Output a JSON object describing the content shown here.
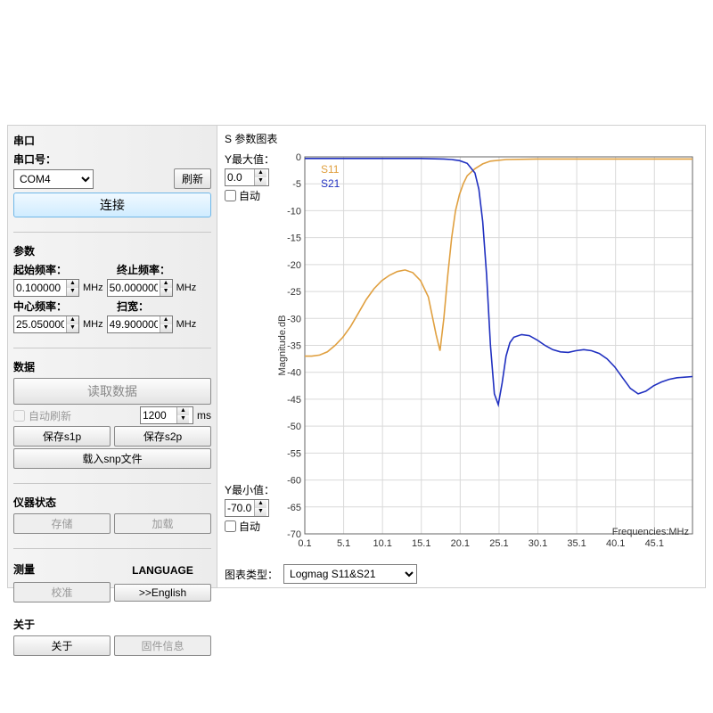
{
  "serial": {
    "section_label": "串口",
    "port_label": "串口号：",
    "port_value": "COM4",
    "refresh_label": "刷新",
    "connect_label": "连接"
  },
  "params": {
    "section_label": "参数",
    "start_freq_label": "起始频率：",
    "start_freq_value": "0.100000",
    "end_freq_label": "终止频率：",
    "end_freq_value": "50.000000",
    "center_freq_label": "中心频率：",
    "center_freq_value": "25.050000",
    "span_label": "扫宽：",
    "span_value": "49.900000",
    "unit": "MHz"
  },
  "data_sec": {
    "section_label": "数据",
    "read_label": "读取数据",
    "auto_refresh_label": "自动刷新",
    "interval_value": "1200",
    "interval_unit": "ms",
    "save_s1p_label": "保存s1p",
    "save_s2p_label": "保存s2p",
    "load_snp_label": "载入snp文件"
  },
  "instrument": {
    "section_label": "仪器状态",
    "store_label": "存储",
    "load_label": "加载"
  },
  "measure": {
    "section_label": "测量",
    "cal_label": "校准",
    "lang_title": "LANGUAGE",
    "lang_btn": ">>English"
  },
  "about": {
    "section_label": "关于",
    "about_btn": "关于",
    "fw_btn": "固件信息"
  },
  "chart": {
    "title": "S 参数图表",
    "ymax_label": "Y最大值：",
    "ymax_value": "0.0",
    "ymin_label": "Y最小值：",
    "ymin_value": "-70.0",
    "auto_label": "自动",
    "y_axis_title": "Magnitude.dB",
    "x_axis_title": "Frequencies:MHz",
    "type_label": "图表类型：",
    "type_value": "Logmag S11&S21",
    "legend_s11": "S11",
    "legend_s21": "S21",
    "xlim": [
      0.1,
      50.0
    ],
    "ylim": [
      -70,
      0
    ],
    "x_ticks": [
      0.1,
      5.1,
      10.1,
      15.1,
      20.1,
      25.1,
      30.1,
      35.1,
      40.1,
      45.1
    ],
    "y_ticks": [
      0,
      -5,
      -10,
      -15,
      -20,
      -25,
      -30,
      -35,
      -40,
      -45,
      -50,
      -55,
      -60,
      -65,
      -70
    ],
    "grid_color": "#d9d9d9",
    "border_color": "#666666",
    "background_color": "#ffffff",
    "s11_color": "#e0a040",
    "s21_color": "#2030c0",
    "line_width": 1.6,
    "s11_points": [
      [
        0.1,
        -37
      ],
      [
        1,
        -37
      ],
      [
        2,
        -36.8
      ],
      [
        3,
        -36.2
      ],
      [
        4,
        -35
      ],
      [
        5,
        -33.5
      ],
      [
        6,
        -31.5
      ],
      [
        7,
        -29
      ],
      [
        8,
        -26.5
      ],
      [
        9,
        -24.5
      ],
      [
        10,
        -23
      ],
      [
        11,
        -22
      ],
      [
        12,
        -21.3
      ],
      [
        13,
        -21
      ],
      [
        14,
        -21.5
      ],
      [
        15,
        -23
      ],
      [
        16,
        -26
      ],
      [
        17,
        -33
      ],
      [
        17.5,
        -36
      ],
      [
        18,
        -30
      ],
      [
        18.5,
        -22
      ],
      [
        19,
        -15
      ],
      [
        19.5,
        -10
      ],
      [
        20,
        -7
      ],
      [
        20.5,
        -5
      ],
      [
        21,
        -3.5
      ],
      [
        22,
        -2.2
      ],
      [
        23,
        -1.3
      ],
      [
        24,
        -0.8
      ],
      [
        26,
        -0.5
      ],
      [
        30,
        -0.4
      ],
      [
        35,
        -0.4
      ],
      [
        40,
        -0.4
      ],
      [
        45,
        -0.4
      ],
      [
        50,
        -0.4
      ]
    ],
    "s21_points": [
      [
        0.1,
        -0.3
      ],
      [
        5,
        -0.3
      ],
      [
        10,
        -0.3
      ],
      [
        15,
        -0.3
      ],
      [
        18,
        -0.4
      ],
      [
        19,
        -0.5
      ],
      [
        20,
        -0.7
      ],
      [
        21,
        -1.2
      ],
      [
        22,
        -3
      ],
      [
        22.5,
        -6
      ],
      [
        23,
        -12
      ],
      [
        23.5,
        -22
      ],
      [
        24,
        -35
      ],
      [
        24.5,
        -44
      ],
      [
        25,
        -46
      ],
      [
        25.5,
        -42
      ],
      [
        26,
        -37
      ],
      [
        26.5,
        -34.5
      ],
      [
        27,
        -33.5
      ],
      [
        28,
        -33
      ],
      [
        29,
        -33.2
      ],
      [
        30,
        -34
      ],
      [
        31,
        -35
      ],
      [
        32,
        -35.8
      ],
      [
        33,
        -36.2
      ],
      [
        34,
        -36.3
      ],
      [
        35,
        -36
      ],
      [
        36,
        -35.8
      ],
      [
        37,
        -36
      ],
      [
        38,
        -36.5
      ],
      [
        39,
        -37.5
      ],
      [
        40,
        -39
      ],
      [
        41,
        -41
      ],
      [
        42,
        -43
      ],
      [
        43,
        -44
      ],
      [
        44,
        -43.5
      ],
      [
        45,
        -42.5
      ],
      [
        46,
        -41.8
      ],
      [
        47,
        -41.3
      ],
      [
        48,
        -41
      ],
      [
        49,
        -40.9
      ],
      [
        50,
        -40.8
      ]
    ]
  }
}
